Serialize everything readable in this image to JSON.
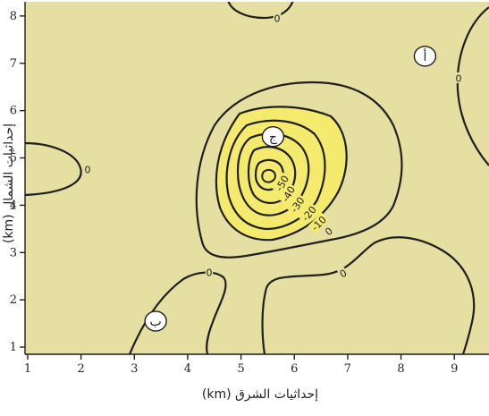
{
  "chart_data": {
    "type": "contour",
    "xlabel": "إحداثيات الشرق (km)",
    "ylabel": "إحداثيات الشمال (km)",
    "xlim": [
      0.95,
      9.65
    ],
    "ylim": [
      0.85,
      8.3
    ],
    "xticks": [
      "1",
      "2",
      "3",
      "4",
      "5",
      "6",
      "7",
      "8",
      "9"
    ],
    "yticks": [
      "1",
      "2",
      "3",
      "4",
      "5",
      "6",
      "7",
      "8"
    ],
    "contour_levels": [
      "0",
      "-10",
      "-20",
      "-30",
      "-40",
      "-50"
    ],
    "zero_contour_labels": [
      "0",
      "0",
      "0",
      "0",
      "0",
      "0"
    ],
    "points": [
      {
        "label": "أ",
        "x": 8.45,
        "y": 7.15
      },
      {
        "label": "ب",
        "x": 3.4,
        "y": 1.55
      },
      {
        "label": "ج",
        "x": 5.6,
        "y": 5.45
      }
    ],
    "colors": {
      "background": "#e6dfa2",
      "negative_fill": "#f4ea6e",
      "line": "#1f1f1f"
    }
  }
}
